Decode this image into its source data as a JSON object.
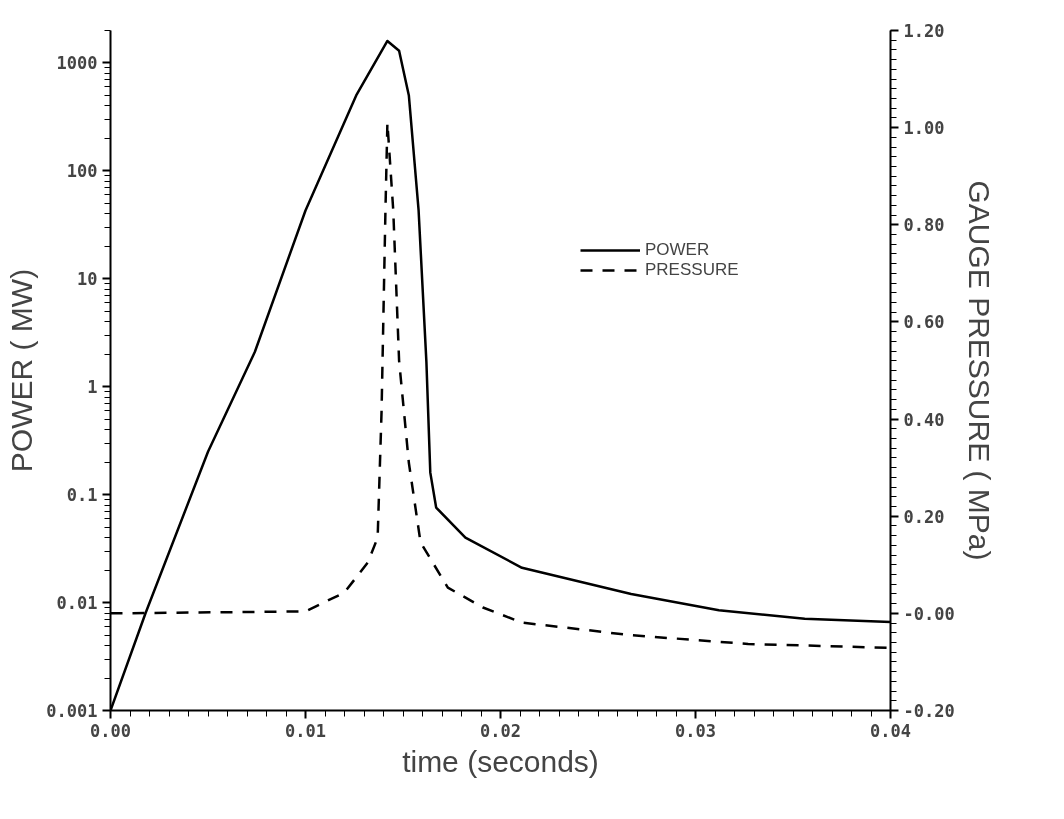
{
  "chart_data": {
    "type": "line",
    "xlabel": "time (seconds)",
    "ylabel": "POWER ( MW)",
    "y2label": "GAUGE PRESSURE ( MPa)",
    "log": "y",
    "grid": false,
    "legend": "top right",
    "marker": "none",
    "xlim": [
      0,
      0.04
    ],
    "xticks": [
      {
        "value": 0,
        "label": "0.00"
      },
      {
        "value": 0.01,
        "label": "0.01"
      },
      {
        "value": 0.02,
        "label": "0.02"
      },
      {
        "value": 0.03,
        "label": "0.03"
      },
      {
        "value": 0.04,
        "label": "0.04"
      }
    ],
    "ylim": [
      0.001,
      2000
    ],
    "yticks": [
      0.001,
      0.01,
      0.1,
      1,
      10,
      100,
      1000
    ],
    "y2lim": [
      -0.2,
      1.2
    ],
    "y2ticks": [
      {
        "value": -0.2,
        "label": "-0.20"
      },
      {
        "value": 0,
        "label": "-0.00"
      },
      {
        "value": 0.2,
        "label": "0.20"
      },
      {
        "value": 0.4,
        "label": "0.40"
      },
      {
        "value": 0.6,
        "label": "0.60"
      },
      {
        "value": 0.8,
        "label": "0.80"
      },
      {
        "value": 1.0,
        "label": "1.00"
      },
      {
        "value": 1.2,
        "label": "1.20"
      }
    ],
    "series": [
      {
        "name": "POWER",
        "color": "#000000",
        "line_style": "solid",
        "x": [
          0,
          0.0018,
          0.005,
          0.0074,
          0.01,
          0.0126,
          0.0142,
          0.0148,
          0.0153,
          0.0158,
          0.0162,
          0.0164,
          0.0167,
          0.0182,
          0.0211,
          0.0267,
          0.0312,
          0.0356,
          0.04
        ],
        "values": [
          0.001,
          0.008,
          0.25,
          2.1,
          43,
          500,
          1600,
          1300,
          500,
          43,
          1.7,
          0.16,
          0.076,
          0.04,
          0.021,
          0.012,
          0.0085,
          0.0071,
          0.0066
        ]
      },
      {
        "name": "PRESSURE",
        "color": "#000000",
        "line_style": "dashed",
        "axis": "y2",
        "x": [
          0,
          0.01,
          0.012,
          0.0132,
          0.0137,
          0.0139,
          0.0141,
          0.0142,
          0.0145,
          0.0148,
          0.0153,
          0.0159,
          0.0173,
          0.0191,
          0.0211,
          0.0267,
          0.0327,
          0.04
        ],
        "values": [
          0,
          0.004,
          0.043,
          0.105,
          0.156,
          0.415,
          0.83,
          1.01,
          0.83,
          0.52,
          0.31,
          0.146,
          0.053,
          0.012,
          -0.019,
          -0.045,
          -0.063,
          -0.071
        ]
      }
    ]
  }
}
